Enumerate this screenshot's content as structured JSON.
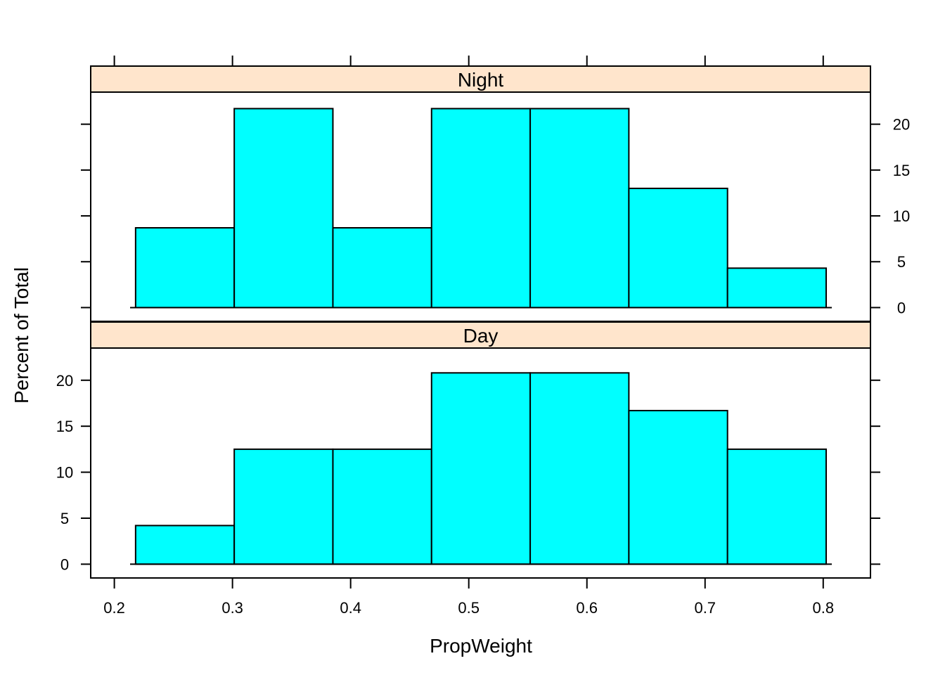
{
  "chart_data": {
    "type": "bar",
    "subtype": "histogram-trellis",
    "xlabel": "PropWeight",
    "ylabel": "Percent of Total",
    "xlim": [
      0.18,
      0.84
    ],
    "ylim": [
      -1.5,
      23.5
    ],
    "x_ticks": [
      "0.2",
      "0.3",
      "0.4",
      "0.5",
      "0.6",
      "0.7",
      "0.8"
    ],
    "y_ticks": [
      "0",
      "5",
      "10",
      "15",
      "20"
    ],
    "bin_edges": [
      0.218,
      0.3015,
      0.385,
      0.4685,
      0.552,
      0.6355,
      0.719,
      0.8025
    ],
    "bar_color": "#00FFFF",
    "strip_color": "#FFE5CC",
    "grid": false,
    "panels": [
      {
        "name": "Night",
        "values": [
          8.7,
          21.7,
          8.7,
          21.7,
          21.7,
          13.0,
          4.3
        ]
      },
      {
        "name": "Day",
        "values": [
          4.2,
          12.5,
          12.5,
          20.8,
          20.8,
          16.7,
          12.5
        ]
      }
    ]
  }
}
